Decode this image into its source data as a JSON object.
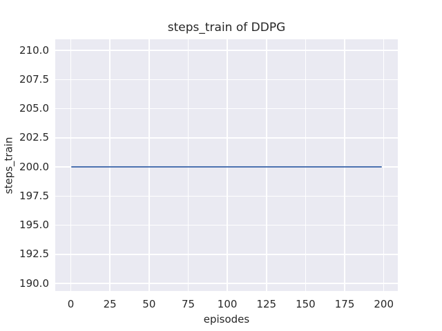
{
  "chart_data": {
    "type": "line",
    "title": "steps_train of DDPG",
    "xlabel": "episodes",
    "ylabel": "steps_train",
    "xlim": [
      -9.95,
      208.95
    ],
    "ylim": [
      189.35,
      210.95
    ],
    "xticks": [
      0,
      25,
      50,
      75,
      100,
      125,
      150,
      175,
      200
    ],
    "xtick_labels": [
      "0",
      "25",
      "50",
      "75",
      "100",
      "125",
      "150",
      "175",
      "200"
    ],
    "yticks": [
      190.0,
      192.5,
      195.0,
      197.5,
      200.0,
      202.5,
      205.0,
      207.5,
      210.0
    ],
    "ytick_labels": [
      "190.0",
      "192.5",
      "195.0",
      "197.5",
      "200.0",
      "202.5",
      "205.0",
      "207.5",
      "210.0"
    ],
    "grid": true,
    "legend": "none",
    "series": [
      {
        "name": "steps_train",
        "x": [
          0,
          199
        ],
        "y": [
          200,
          200
        ],
        "color": "#4c72b0",
        "linewidth": 2
      }
    ],
    "style": {
      "plot_background": "#eaeaf2",
      "grid_color": "#ffffff",
      "text_color": "#262626",
      "figure_background": "#ffffff"
    }
  }
}
